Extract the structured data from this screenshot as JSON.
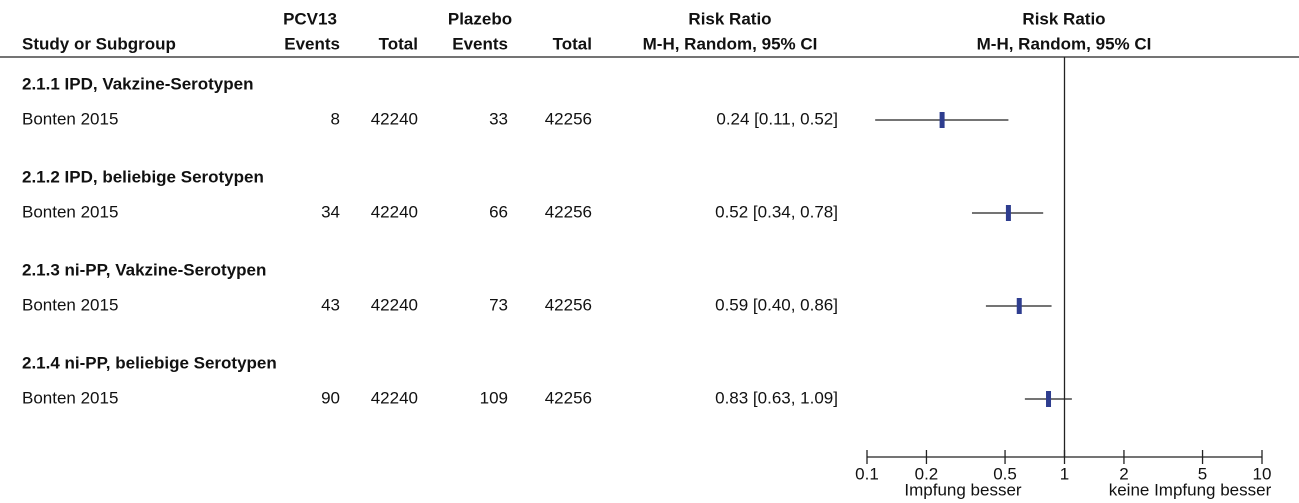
{
  "chart_data": {
    "type": "forest",
    "headers": {
      "group1": "PCV13",
      "group2": "Plazebo",
      "effect": "Risk Ratio",
      "plot": "Risk Ratio",
      "study": "Study or Subgroup",
      "events1": "Events",
      "total1": "Total",
      "events2": "Events",
      "total2": "Total",
      "effect_method": "M-H, Random, 95% CI",
      "plot_method": "M-H, Random, 95% CI"
    },
    "subgroups": [
      {
        "title": "2.1.1 IPD, Vakzine-Serotypen",
        "studies": [
          {
            "name": "Bonten 2015",
            "events1": 8,
            "total1": 42240,
            "events2": 33,
            "total2": 42256,
            "rr": 0.24,
            "ci": [
              0.11,
              0.52
            ],
            "value_label": "0.24 [0.11, 0.52]"
          }
        ]
      },
      {
        "title": "2.1.2 IPD, beliebige Serotypen",
        "studies": [
          {
            "name": "Bonten 2015",
            "events1": 34,
            "total1": 42240,
            "events2": 66,
            "total2": 42256,
            "rr": 0.52,
            "ci": [
              0.34,
              0.78
            ],
            "value_label": "0.52 [0.34, 0.78]"
          }
        ]
      },
      {
        "title": "2.1.3 ni-PP, Vakzine-Serotypen",
        "studies": [
          {
            "name": "Bonten 2015",
            "events1": 43,
            "total1": 42240,
            "events2": 73,
            "total2": 42256,
            "rr": 0.59,
            "ci": [
              0.4,
              0.86
            ],
            "value_label": "0.59 [0.40, 0.86]"
          }
        ]
      },
      {
        "title": "2.1.4 ni-PP, beliebige Serotypen",
        "studies": [
          {
            "name": "Bonten 2015",
            "events1": 90,
            "total1": 42240,
            "events2": 109,
            "total2": 42256,
            "rr": 0.83,
            "ci": [
              0.63,
              1.09
            ],
            "value_label": "0.83 [0.63, 1.09]"
          }
        ]
      }
    ],
    "xlim": [
      0.1,
      10
    ],
    "xticks": [
      0.1,
      0.2,
      0.5,
      1,
      2,
      5,
      10
    ],
    "log_scale": true,
    "color": "#2e3d8f",
    "favours_left": "Impfung besser",
    "favours_right": "keine Impfung besser"
  }
}
